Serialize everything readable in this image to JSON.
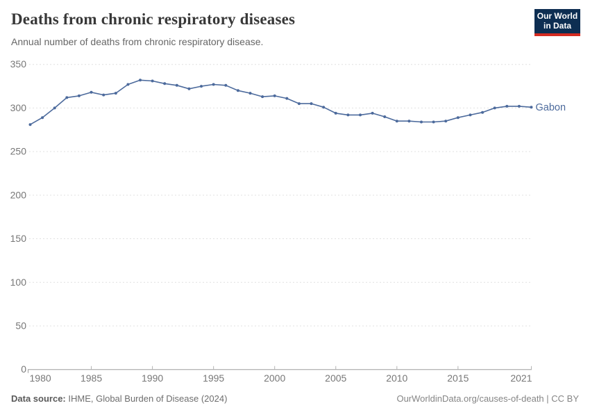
{
  "header": {
    "title": "Deaths from chronic respiratory diseases",
    "subtitle": "Annual number of deaths from chronic respiratory disease.",
    "logo": {
      "line1": "Our World",
      "line2": "in Data"
    }
  },
  "chart_data": {
    "type": "line",
    "title": "Deaths from chronic respiratory diseases",
    "subtitle": "Annual number of deaths from chronic respiratory disease.",
    "xlabel": "",
    "ylabel": "",
    "xlim": [
      1980,
      2021
    ],
    "ylim": [
      0,
      350
    ],
    "grid": "horizontal-dashed",
    "legend_position": "end-of-line",
    "x_ticks": [
      1980,
      1985,
      1990,
      1995,
      2000,
      2005,
      2010,
      2015,
      2021
    ],
    "y_ticks": [
      0,
      50,
      100,
      150,
      200,
      250,
      300,
      350
    ],
    "x": [
      1980,
      1981,
      1982,
      1983,
      1984,
      1985,
      1986,
      1987,
      1988,
      1989,
      1990,
      1991,
      1992,
      1993,
      1994,
      1995,
      1996,
      1997,
      1998,
      1999,
      2000,
      2001,
      2002,
      2003,
      2004,
      2005,
      2006,
      2007,
      2008,
      2009,
      2010,
      2011,
      2012,
      2013,
      2014,
      2015,
      2016,
      2017,
      2018,
      2019,
      2020,
      2021
    ],
    "series": [
      {
        "name": "Gabon",
        "color": "#4c6a9c",
        "values": [
          281,
          289,
          300,
          312,
          314,
          318,
          315,
          317,
          327,
          332,
          331,
          328,
          326,
          322,
          325,
          327,
          326,
          320,
          317,
          313,
          314,
          311,
          305,
          305,
          301,
          294,
          292,
          292,
          294,
          290,
          285,
          285,
          284,
          284,
          285,
          289,
          292,
          295,
          300,
          302,
          302,
          301
        ]
      }
    ]
  },
  "footer": {
    "source_label": "Data source:",
    "source_text": " IHME, Global Burden of Disease (2024)",
    "credit": "OurWorldinData.org/causes-of-death | CC BY"
  },
  "colors": {
    "line": "#4c6a9c",
    "grid": "#e0e0e0",
    "axis": "#9e9e9e",
    "tick": "#b3b3b3",
    "tick_text": "#777777",
    "logo_bg": "#0d2e52",
    "logo_red": "#d42b21",
    "title_text": "#383838",
    "subtitle_text": "#666666"
  }
}
